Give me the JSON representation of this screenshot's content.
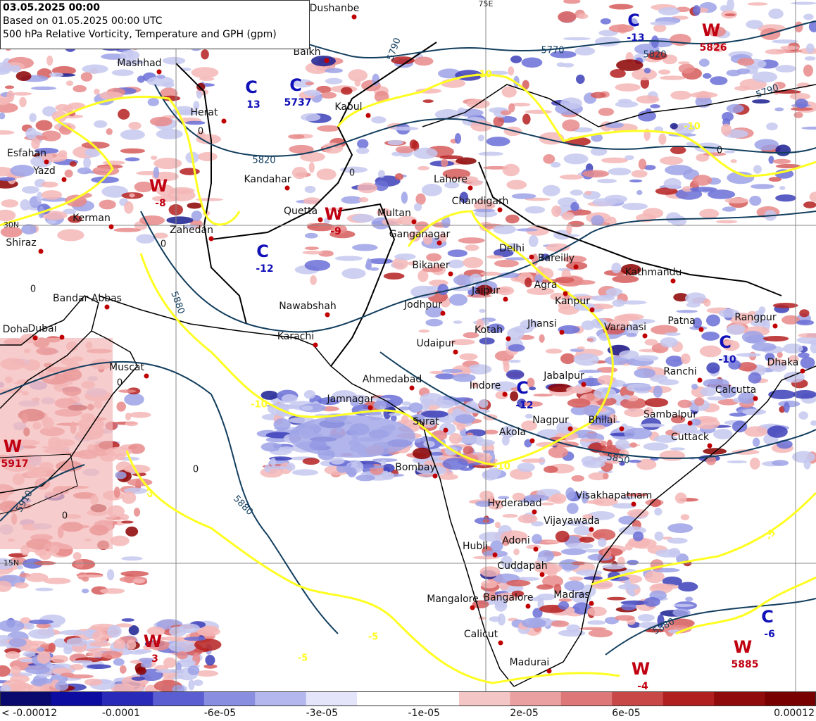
{
  "header": {
    "valid_time": "03.05.2025 00:00",
    "based_on": "Based on 01.05.2025 00:00 UTC",
    "product": "500 hPa Relative Vorticity, Temperature and GPH (gpm)"
  },
  "graticule_labels": [
    "30N",
    "15N",
    "75E"
  ],
  "cities": [
    "Dushanbe",
    "Balkh",
    "Mashhad",
    "Herat",
    "Kabul",
    "Esfahan",
    "Yazd",
    "Kandahar",
    "Kerman",
    "Zahedan",
    "Quetta",
    "Shiraz",
    "Multan",
    "Lahore",
    "Ganganagar",
    "Chandigarh",
    "Delhi",
    "Bareilly",
    "Bikaner",
    "Kathmandu",
    "Bandar Abbas",
    "Nawabshah",
    "Jodhpur",
    "Jaipur",
    "Agra",
    "Kanpur",
    "Doha",
    "Dubai",
    "Karachi",
    "Jhansi",
    "Varanasi",
    "Patna",
    "Rangpur",
    "Kotah",
    "Udaipur",
    "Muscat",
    "Dhaka",
    "Ranchi",
    "Ahmedabad",
    "Indore",
    "Jabalpur",
    "Calcutta",
    "Jamnagar",
    "Surat",
    "Nagpur",
    "Bhilai",
    "Akola",
    "Sambalpur",
    "Cuttack",
    "Bombay",
    "Visakhapatnam",
    "Hyderabad",
    "Vijayawada",
    "Adoni",
    "Hubli",
    "Cuddapah",
    "Madras",
    "Mangalore",
    "Bangalore",
    "Calicut",
    "Madurai"
  ],
  "pressure_systems": [
    {
      "letter": "C",
      "value": 13
    },
    {
      "letter": "C",
      "value": 5737
    },
    {
      "letter": "C",
      "value": -13
    },
    {
      "letter": "W",
      "value": 5826
    },
    {
      "letter": "W",
      "value": -8
    },
    {
      "letter": "W",
      "value": -9
    },
    {
      "letter": "C",
      "value": -12
    },
    {
      "letter": "C",
      "value": -12
    },
    {
      "letter": "C",
      "value": -10
    },
    {
      "letter": "W",
      "value": 5917
    },
    {
      "letter": "W",
      "value": 3
    },
    {
      "letter": "W",
      "value": -4
    },
    {
      "letter": "C",
      "value": -6
    },
    {
      "letter": "W",
      "value": 5885
    }
  ],
  "contour_labels": [
    5790,
    5820,
    5880,
    5850,
    5910,
    5880,
    5880,
    5820,
    5770,
    5790,
    0,
    0,
    0,
    0,
    0,
    0,
    0,
    0,
    -10,
    -10,
    -10,
    -10,
    -5,
    -5,
    -5,
    -5
  ],
  "colorbar": {
    "labels": [
      "< -0.00012",
      "-0.0001",
      "-6e-05",
      "-3e-05",
      "-1e-05",
      "2e-05",
      "6e-05",
      "0.00012"
    ]
  }
}
